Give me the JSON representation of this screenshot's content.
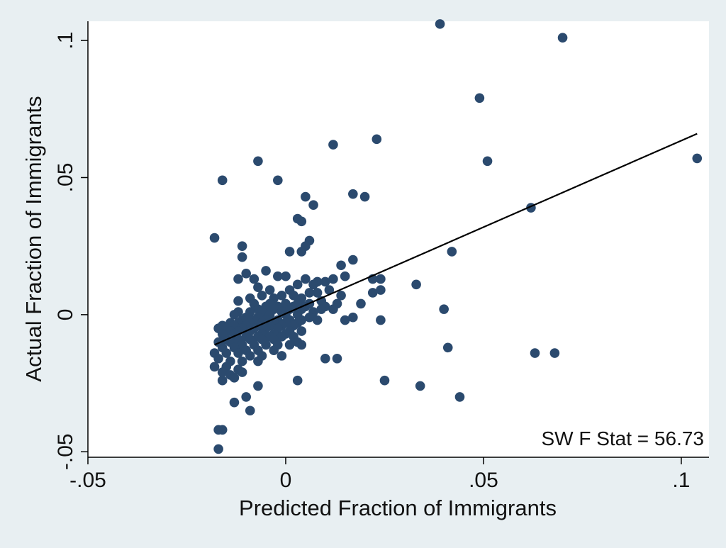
{
  "colors": {
    "outer_background": "#e8eff2",
    "plot_background": "#ffffff",
    "marker": "#2b4a6e",
    "fit_line": "#000000",
    "axis": "#000000"
  },
  "chart_data": {
    "type": "scatter",
    "title": "",
    "xlabel": "Predicted Fraction of Immigrants",
    "ylabel": "Actual Fraction of Immigrants",
    "xlim": [
      -0.05,
      0.107
    ],
    "ylim": [
      -0.052,
      0.107
    ],
    "x_ticks": [
      {
        "value": -0.05,
        "label": "-.05"
      },
      {
        "value": 0,
        "label": "0"
      },
      {
        "value": 0.05,
        "label": ".05"
      },
      {
        "value": 0.1,
        "label": ".1"
      }
    ],
    "y_ticks": [
      {
        "value": -0.05,
        "label": "-.05"
      },
      {
        "value": 0,
        "label": "0"
      },
      {
        "value": 0.05,
        "label": ".05"
      },
      {
        "value": 0.1,
        "label": ".1"
      }
    ],
    "grid": false,
    "legend": "none",
    "annotation": "SW F Stat = 56.73",
    "fit_line": {
      "x": [
        -0.018,
        0.104
      ],
      "y": [
        -0.011,
        0.066
      ]
    },
    "points": [
      [
        0.039,
        0.106
      ],
      [
        0.07,
        0.101
      ],
      [
        0.049,
        0.079
      ],
      [
        0.012,
        0.062
      ],
      [
        0.023,
        0.064
      ],
      [
        0.051,
        0.056
      ],
      [
        0.104,
        0.057
      ],
      [
        -0.007,
        0.056
      ],
      [
        -0.016,
        0.049
      ],
      [
        -0.002,
        0.049
      ],
      [
        0.005,
        0.043
      ],
      [
        0.007,
        0.04
      ],
      [
        0.017,
        0.044
      ],
      [
        0.02,
        0.043
      ],
      [
        0.062,
        0.039
      ],
      [
        0.003,
        0.035
      ],
      [
        0.004,
        0.034
      ],
      [
        -0.018,
        0.028
      ],
      [
        0.006,
        0.027
      ],
      [
        0.005,
        0.025
      ],
      [
        -0.011,
        0.025
      ],
      [
        0.004,
        0.023
      ],
      [
        0.042,
        0.023
      ],
      [
        0.001,
        0.023
      ],
      [
        -0.011,
        0.021
      ],
      [
        0.017,
        0.02
      ],
      [
        0.014,
        0.018
      ],
      [
        -0.005,
        0.016
      ],
      [
        -0.01,
        0.015
      ],
      [
        0.015,
        0.014
      ],
      [
        0.022,
        0.013
      ],
      [
        0.024,
        0.013
      ],
      [
        0.033,
        0.011
      ],
      [
        0.012,
        0.013
      ],
      [
        -0.008,
        0.013
      ],
      [
        -0.012,
        0.013
      ],
      [
        0.008,
        0.012
      ],
      [
        -0.002,
        0.014
      ],
      [
        0,
        0.014
      ],
      [
        0.005,
        0.013
      ],
      [
        0.01,
        0.012
      ],
      [
        0.007,
        0.011
      ],
      [
        0.003,
        0.011
      ],
      [
        -0.007,
        0.01
      ],
      [
        -0.004,
        0.009
      ],
      [
        0.001,
        0.009
      ],
      [
        0.011,
        0.009
      ],
      [
        0.024,
        0.009
      ],
      [
        0.022,
        0.008
      ],
      [
        0.014,
        0.007
      ],
      [
        0.008,
        0.008
      ],
      [
        0.006,
        0.008
      ],
      [
        0.002,
        0.007
      ],
      [
        -0.001,
        0.007
      ],
      [
        -0.006,
        0.007
      ],
      [
        -0.009,
        0.006
      ],
      [
        -0.003,
        0.006
      ],
      [
        0.004,
        0.006
      ],
      [
        0.009,
        0.005
      ],
      [
        -0.012,
        0.005
      ],
      [
        -0.008,
        0.004
      ],
      [
        -0.004,
        0.004
      ],
      [
        0,
        0.004
      ],
      [
        0.003,
        0.004
      ],
      [
        0.006,
        0.004
      ],
      [
        0.013,
        0.004
      ],
      [
        0.019,
        0.004
      ],
      [
        -0.005,
        0.003
      ],
      [
        -0.002,
        0.003
      ],
      [
        0.002,
        0.003
      ],
      [
        0.005,
        0.003
      ],
      [
        0.01,
        0.003
      ],
      [
        0.012,
        0.002
      ],
      [
        0.009,
        0.002
      ],
      [
        0.04,
        0.002
      ],
      [
        -0.007,
        0.002
      ],
      [
        -0.003,
        0.002
      ],
      [
        0.001,
        0.002
      ],
      [
        0.004,
        0.002
      ],
      [
        0.007,
        0.001
      ],
      [
        -0.012,
        0.001
      ],
      [
        -0.009,
        0.001
      ],
      [
        -0.006,
        0.001
      ],
      [
        -0.001,
        0.001
      ],
      [
        0.003,
        0
      ],
      [
        -0.013,
        0
      ],
      [
        -0.01,
        -0.001
      ],
      [
        -0.007,
        -0.001
      ],
      [
        -0.004,
        0
      ],
      [
        0,
        0
      ],
      [
        0.006,
        -0.001
      ],
      [
        0.017,
        -0.001
      ],
      [
        -0.011,
        -0.002
      ],
      [
        -0.008,
        -0.002
      ],
      [
        -0.005,
        -0.002
      ],
      [
        -0.002,
        -0.002
      ],
      [
        0.001,
        -0.002
      ],
      [
        0.004,
        -0.002
      ],
      [
        0.008,
        -0.002
      ],
      [
        0.015,
        -0.002
      ],
      [
        0.024,
        -0.002
      ],
      [
        -0.014,
        -0.003
      ],
      [
        -0.012,
        -0.003
      ],
      [
        -0.009,
        -0.003
      ],
      [
        -0.006,
        -0.003
      ],
      [
        -0.003,
        -0.003
      ],
      [
        0,
        -0.003
      ],
      [
        0.003,
        -0.003
      ],
      [
        -0.016,
        -0.004
      ],
      [
        -0.013,
        -0.004
      ],
      [
        -0.01,
        -0.004
      ],
      [
        -0.007,
        -0.004
      ],
      [
        -0.004,
        -0.004
      ],
      [
        -0.001,
        -0.004
      ],
      [
        0.002,
        -0.004
      ],
      [
        -0.017,
        -0.005
      ],
      [
        -0.015,
        -0.005
      ],
      [
        -0.011,
        -0.005
      ],
      [
        -0.008,
        -0.005
      ],
      [
        -0.005,
        -0.005
      ],
      [
        -0.002,
        -0.005
      ],
      [
        0.001,
        -0.006
      ],
      [
        0.004,
        -0.006
      ],
      [
        -0.014,
        -0.006
      ],
      [
        -0.012,
        -0.006
      ],
      [
        -0.009,
        -0.006
      ],
      [
        -0.006,
        -0.007
      ],
      [
        -0.003,
        -0.007
      ],
      [
        0,
        -0.007
      ],
      [
        -0.016,
        -0.007
      ],
      [
        -0.013,
        -0.007
      ],
      [
        -0.01,
        -0.008
      ],
      [
        -0.007,
        -0.008
      ],
      [
        -0.004,
        -0.008
      ],
      [
        -0.001,
        -0.008
      ],
      [
        0.002,
        -0.008
      ],
      [
        -0.015,
        -0.009
      ],
      [
        -0.012,
        -0.009
      ],
      [
        -0.009,
        -0.009
      ],
      [
        -0.006,
        -0.009
      ],
      [
        -0.003,
        -0.009
      ],
      [
        0.003,
        -0.01
      ],
      [
        -0.017,
        -0.01
      ],
      [
        -0.014,
        -0.01
      ],
      [
        -0.011,
        -0.011
      ],
      [
        -0.008,
        -0.011
      ],
      [
        -0.005,
        -0.011
      ],
      [
        -0.002,
        -0.011
      ],
      [
        0.001,
        -0.011
      ],
      [
        0.004,
        -0.011
      ],
      [
        0.041,
        -0.012
      ],
      [
        -0.016,
        -0.012
      ],
      [
        -0.013,
        -0.012
      ],
      [
        -0.01,
        -0.013
      ],
      [
        -0.007,
        -0.013
      ],
      [
        -0.003,
        -0.013
      ],
      [
        0.063,
        -0.014
      ],
      [
        0.068,
        -0.014
      ],
      [
        -0.018,
        -0.014
      ],
      [
        -0.015,
        -0.014
      ],
      [
        -0.012,
        -0.014
      ],
      [
        -0.009,
        -0.015
      ],
      [
        -0.006,
        -0.015
      ],
      [
        -0.001,
        -0.015
      ],
      [
        0.01,
        -0.016
      ],
      [
        0.013,
        -0.016
      ],
      [
        -0.017,
        -0.016
      ],
      [
        -0.014,
        -0.017
      ],
      [
        -0.011,
        -0.017
      ],
      [
        -0.007,
        -0.017
      ],
      [
        -0.015,
        -0.019
      ],
      [
        -0.018,
        -0.019
      ],
      [
        -0.012,
        -0.02
      ],
      [
        -0.016,
        -0.021
      ],
      [
        -0.014,
        -0.022
      ],
      [
        -0.011,
        -0.021
      ],
      [
        -0.013,
        -0.023
      ],
      [
        -0.016,
        -0.024
      ],
      [
        0.003,
        -0.024
      ],
      [
        0.025,
        -0.024
      ],
      [
        -0.007,
        -0.026
      ],
      [
        0.034,
        -0.026
      ],
      [
        -0.01,
        -0.03
      ],
      [
        0.044,
        -0.03
      ],
      [
        -0.013,
        -0.032
      ],
      [
        -0.009,
        -0.035
      ],
      [
        -0.016,
        -0.042
      ],
      [
        -0.017,
        -0.042
      ],
      [
        -0.017,
        -0.049
      ]
    ]
  }
}
